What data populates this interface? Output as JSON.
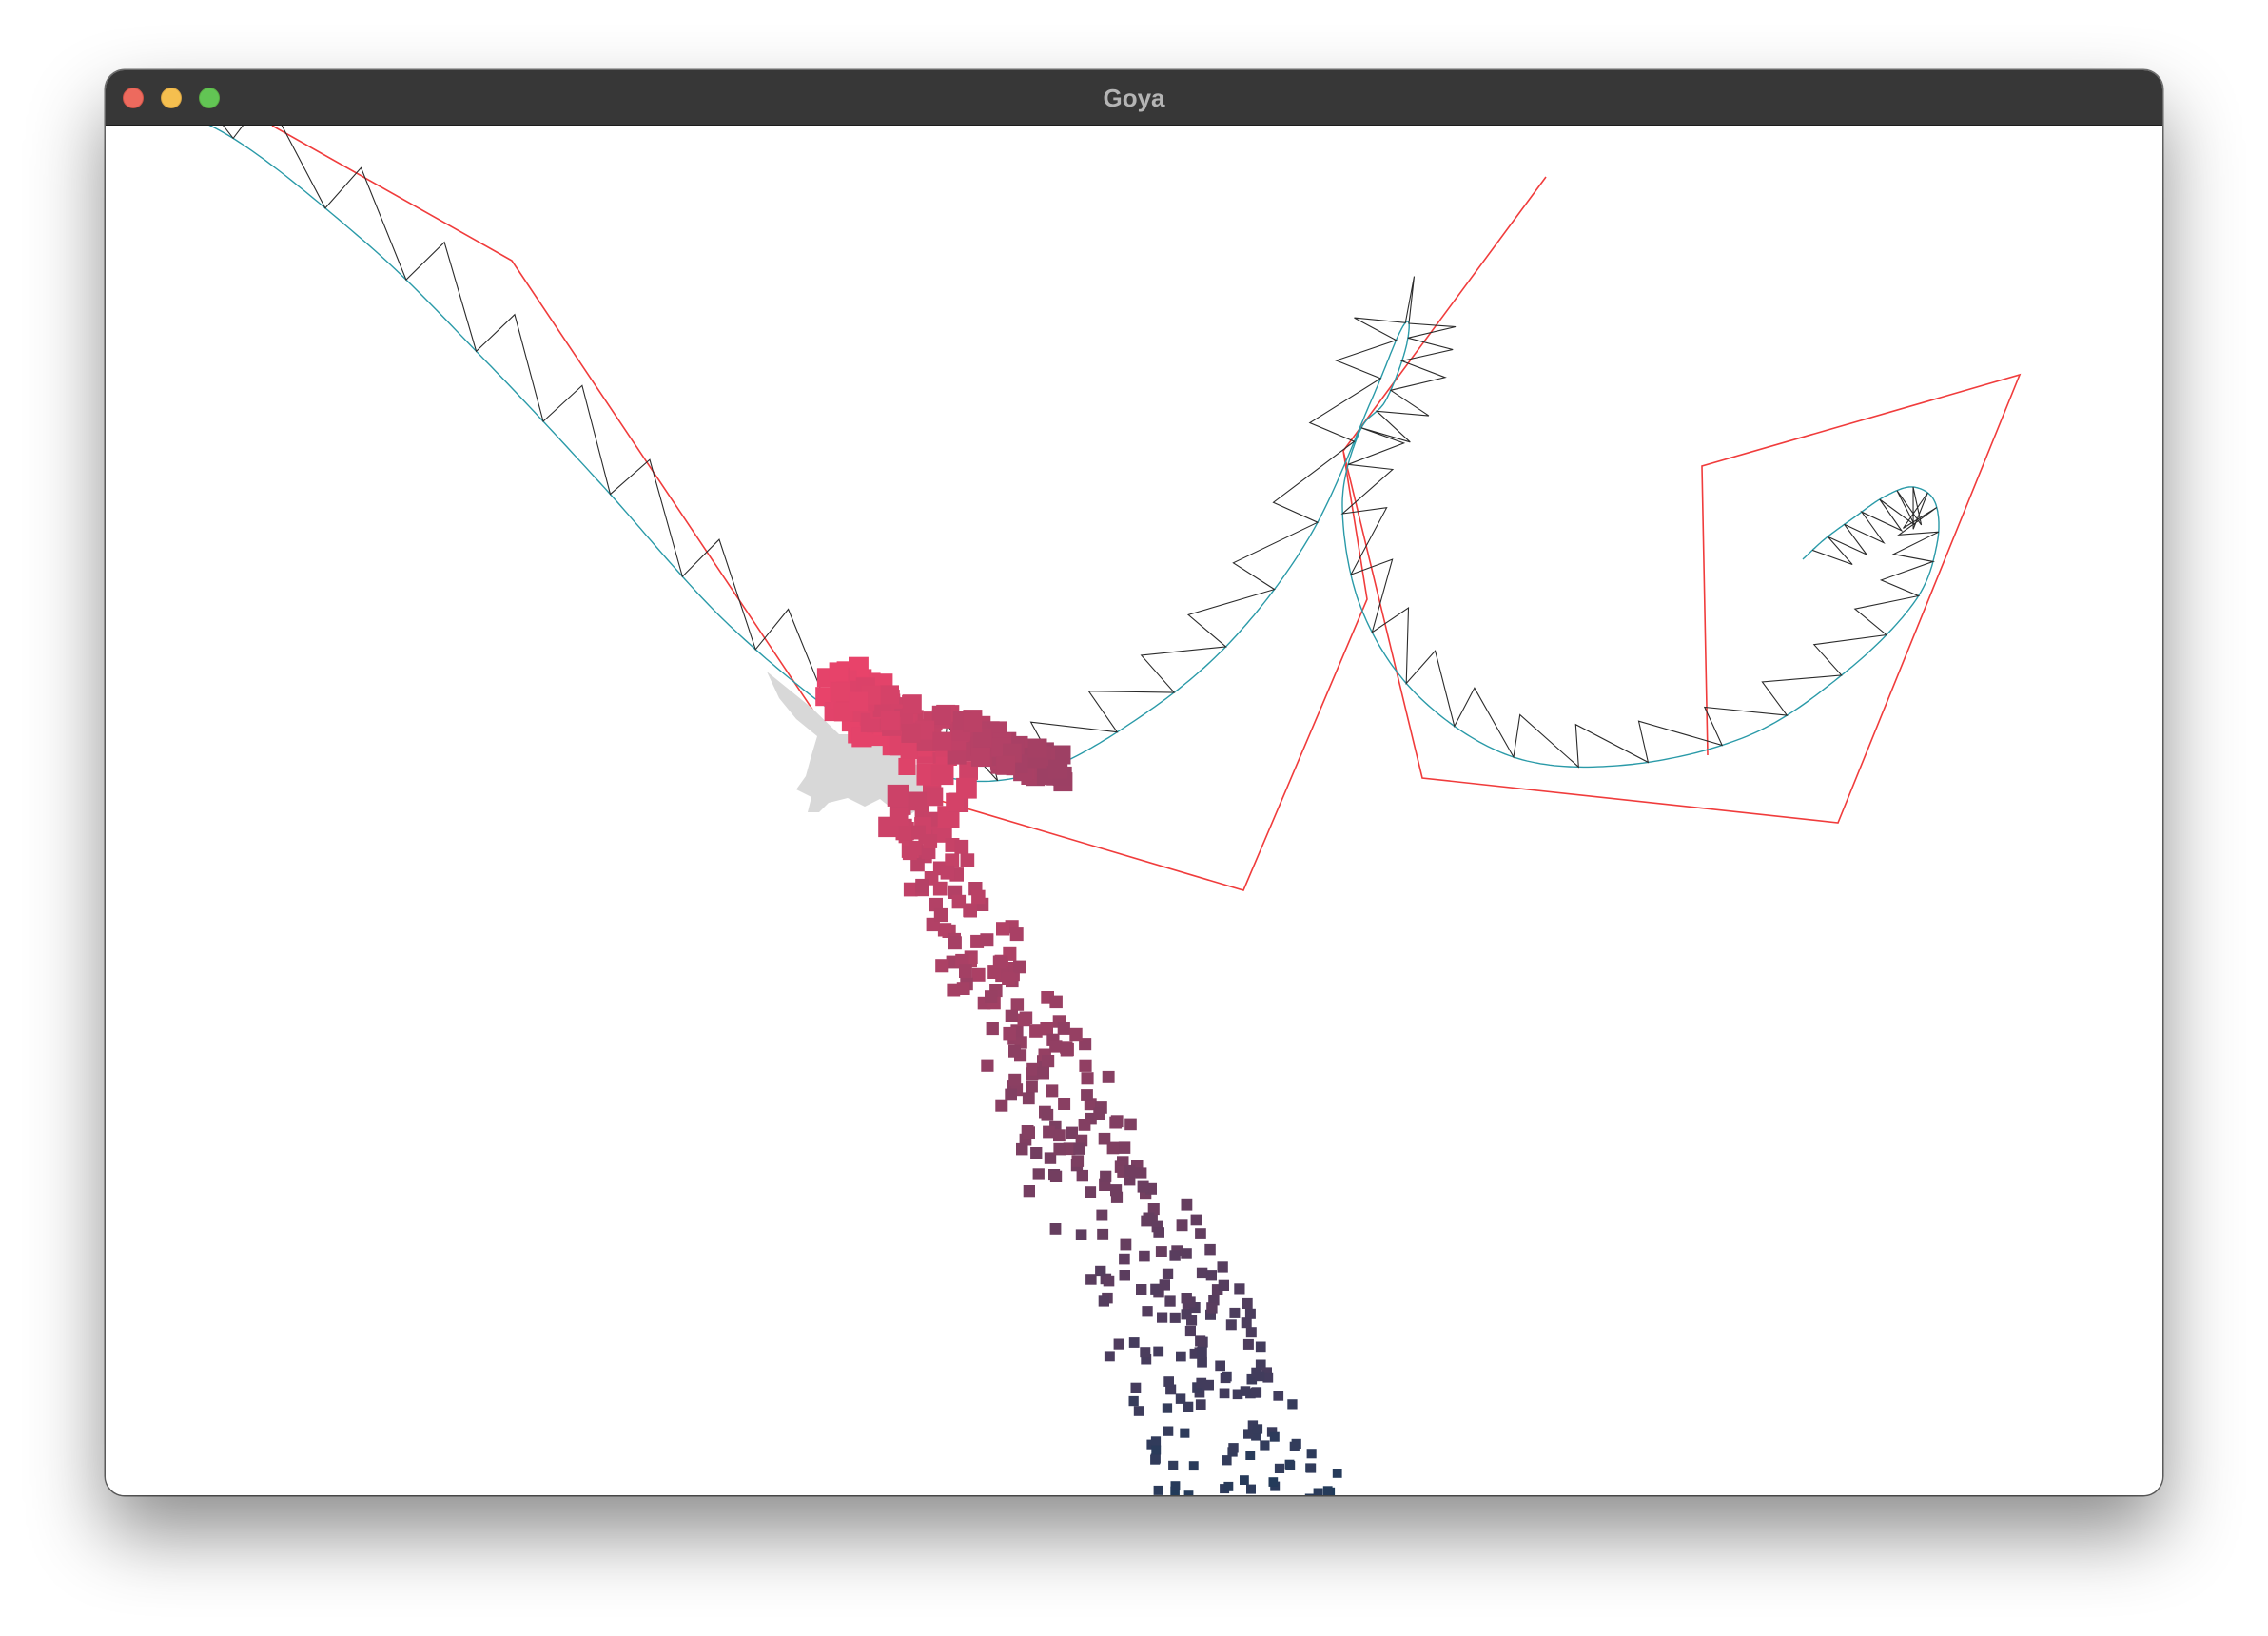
{
  "window": {
    "title": "Goya"
  },
  "traffic_lights": [
    "close",
    "minimize",
    "zoom"
  ],
  "colors": {
    "control_polygon": "#f03c3c",
    "curve": "#2a9aa8",
    "teeth": "#2b2b2b",
    "particles_start": "#e8436a",
    "particles_end": "#0d3a58",
    "mascot": "#d8d8d8"
  }
}
